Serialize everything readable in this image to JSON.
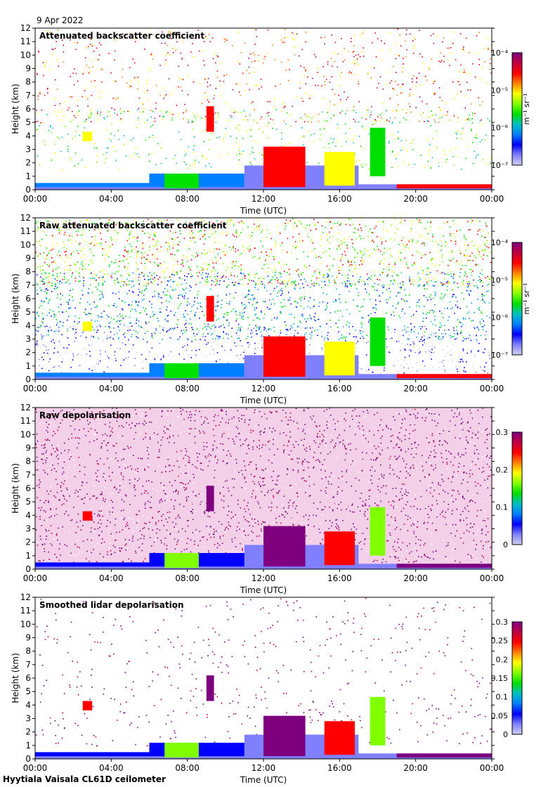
{
  "date": "9 Apr 2022",
  "footer": "Hyytiala Vaisala CL61D ceilometer",
  "colors": {
    "jet": [
      "#7f007f",
      "#c00040",
      "#ff0000",
      "#ff8000",
      "#ffff00",
      "#80ff00",
      "#00e000",
      "#00c0c0",
      "#0080ff",
      "#0000ff",
      "#8080ff",
      "#d0d0f0"
    ]
  },
  "chart_data": [
    {
      "type": "heatmap",
      "title": "Attenuated backscatter coefficient",
      "xlabel": "Time (UTC)",
      "ylabel": "Height (km)",
      "xticks": [
        "00:00",
        "04:00",
        "08:00",
        "12:00",
        "16:00",
        "20:00",
        "00:00"
      ],
      "yticks": [
        "0",
        "1",
        "2",
        "3",
        "4",
        "5",
        "6",
        "7",
        "8",
        "9",
        "10",
        "11",
        "12"
      ],
      "ylim": [
        0,
        12
      ],
      "xlim_hours": [
        0,
        24
      ],
      "colorbar": {
        "scale": "log",
        "range": [
          1e-07,
          0.0001
        ],
        "ticks": [
          "10⁻⁷",
          "10⁻⁶",
          "10⁻⁵",
          "10⁻⁴"
        ],
        "unit": "m⁻¹ sr⁻¹"
      }
    },
    {
      "type": "heatmap",
      "title": "Raw attenuated backscatter coefficient",
      "xlabel": "Time (UTC)",
      "ylabel": "Height (km)",
      "xticks": [
        "00:00",
        "04:00",
        "08:00",
        "12:00",
        "16:00",
        "20:00",
        "00:00"
      ],
      "yticks": [
        "0",
        "1",
        "2",
        "3",
        "4",
        "5",
        "6",
        "7",
        "8",
        "9",
        "10",
        "11",
        "12"
      ],
      "ylim": [
        0,
        12
      ],
      "xlim_hours": [
        0,
        24
      ],
      "colorbar": {
        "scale": "log",
        "range": [
          1e-07,
          0.0001
        ],
        "ticks": [
          "10⁻⁷",
          "10⁻⁶",
          "10⁻⁵",
          "10⁻⁴"
        ],
        "unit": "m⁻¹ sr⁻¹"
      }
    },
    {
      "type": "heatmap",
      "title": "Raw depolarisation",
      "xlabel": "Time (UTC)",
      "ylabel": "Height (km)",
      "xticks": [
        "00:00",
        "04:00",
        "08:00",
        "12:00",
        "16:00",
        "20:00",
        "00:00"
      ],
      "yticks": [
        "0",
        "1",
        "2",
        "3",
        "4",
        "5",
        "6",
        "7",
        "8",
        "9",
        "10",
        "11",
        "12"
      ],
      "ylim": [
        0,
        12
      ],
      "xlim_hours": [
        0,
        24
      ],
      "colorbar": {
        "scale": "linear",
        "range": [
          0,
          0.3
        ],
        "ticks": [
          "0",
          "0.1",
          "0.2",
          "0.3"
        ],
        "unit": ""
      }
    },
    {
      "type": "heatmap",
      "title": "Smoothed lidar depolarisation",
      "xlabel": "Time (UTC)",
      "ylabel": "Height (km)",
      "xticks": [
        "00:00",
        "04:00",
        "08:00",
        "12:00",
        "16:00",
        "20:00",
        "00:00"
      ],
      "yticks": [
        "0",
        "1",
        "2",
        "3",
        "4",
        "5",
        "6",
        "7",
        "8",
        "9",
        "10",
        "11",
        "12"
      ],
      "ylim": [
        0,
        12
      ],
      "xlim_hours": [
        0,
        24
      ],
      "colorbar": {
        "scale": "linear",
        "range": [
          0,
          0.3
        ],
        "ticks": [
          "0",
          "0.05",
          "0.1",
          "0.15",
          "0.2",
          "0.25",
          "0.3"
        ],
        "unit": ""
      }
    }
  ]
}
